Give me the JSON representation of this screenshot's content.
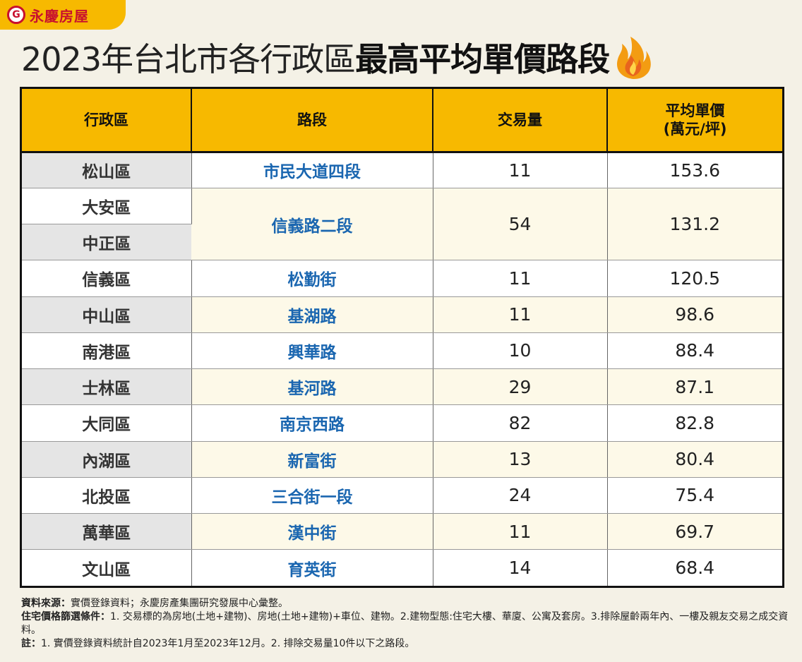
{
  "brand": {
    "name": "永慶房屋"
  },
  "title": {
    "normal": "2023年台北市各行政區",
    "bold": "最高平均單價路段"
  },
  "chart_data": {
    "type": "table",
    "columns": [
      "行政區",
      "路段",
      "交易量",
      "平均單價\n(萬元/坪)"
    ],
    "rows": [
      {
        "district": "松山區",
        "road": "市民大道四段",
        "volume": "11",
        "price": "153.6"
      },
      {
        "district": "大安區",
        "road": "信義路二段",
        "volume": "54",
        "price": "131.2"
      },
      {
        "district": "中正區",
        "road": "",
        "volume": "",
        "price": ""
      },
      {
        "district": "信義區",
        "road": "松勤街",
        "volume": "11",
        "price": "120.5"
      },
      {
        "district": "中山區",
        "road": "基湖路",
        "volume": "11",
        "price": "98.6"
      },
      {
        "district": "南港區",
        "road": "興華路",
        "volume": "10",
        "price": "88.4"
      },
      {
        "district": "士林區",
        "road": "基河路",
        "volume": "29",
        "price": "87.1"
      },
      {
        "district": "大同區",
        "road": "南京西路",
        "volume": "82",
        "price": "82.8"
      },
      {
        "district": "內湖區",
        "road": "新富街",
        "volume": "13",
        "price": "80.4"
      },
      {
        "district": "北投區",
        "road": "三合街一段",
        "volume": "24",
        "price": "75.4"
      },
      {
        "district": "萬華區",
        "road": "漢中街",
        "volume": "11",
        "price": "69.7"
      },
      {
        "district": "文山區",
        "road": "育英街",
        "volume": "14",
        "price": "68.4"
      }
    ]
  },
  "notes": {
    "source_label": "資料來源：",
    "source_text": "實價登錄資料；永慶房產集團研究發展中心彙整。",
    "criteria_label": "住宅價格篩選條件：",
    "criteria_text": "1. 交易標的為房地(土地+建物)、房地(土地+建物)+車位、建物。2.建物型態:住宅大樓、華廈、公寓及套房。3.排除屋齡兩年內、一樓及親友交易之成交資料。",
    "remark_label": "註：",
    "remark_text": "1. 實價登錄資料統計自2023年1月至2023年12月。2. 排除交易量10件以下之路段。"
  },
  "colors": {
    "accent": "#f7b900",
    "road_text": "#1a66b0",
    "brand_red": "#c8102e"
  },
  "icons": {
    "logo": "brand-logo-icon",
    "flame": "flame-icon"
  }
}
